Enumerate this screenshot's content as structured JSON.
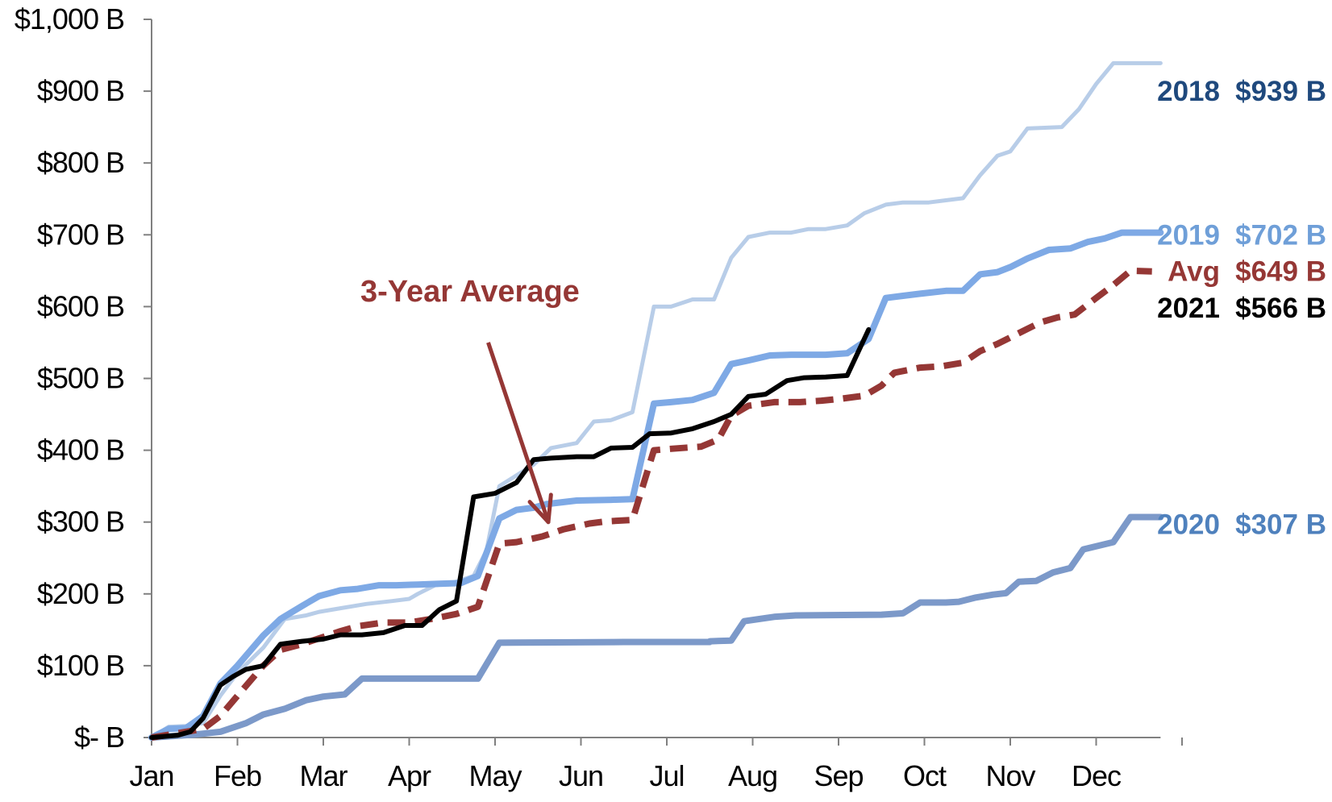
{
  "chart_data": {
    "type": "line",
    "x_categories": [
      "Jan",
      "Feb",
      "Mar",
      "Apr",
      "May",
      "Jun",
      "Jul",
      "Aug",
      "Sep",
      "Oct",
      "Nov",
      "Dec"
    ],
    "y_ticks": [
      {
        "value": 0,
        "label": "$- B"
      },
      {
        "value": 100,
        "label": "$100 B"
      },
      {
        "value": 200,
        "label": "$200 B"
      },
      {
        "value": 300,
        "label": "$300 B"
      },
      {
        "value": 400,
        "label": "$400 B"
      },
      {
        "value": 500,
        "label": "$500 B"
      },
      {
        "value": 600,
        "label": "$600 B"
      },
      {
        "value": 700,
        "label": "$700 B"
      },
      {
        "value": 800,
        "label": "$800 B"
      },
      {
        "value": 900,
        "label": "$900 B"
      },
      {
        "value": 1000,
        "label": "$1,000 B"
      }
    ],
    "ylim": [
      0,
      1000
    ],
    "xlim": [
      0,
      11.75
    ],
    "series": [
      {
        "name": "2020",
        "color": "#7c99c9",
        "width": 8,
        "dash": "",
        "points": [
          [
            0,
            0
          ],
          [
            0.5,
            4
          ],
          [
            0.8,
            8
          ],
          [
            1.1,
            20
          ],
          [
            1.3,
            32
          ],
          [
            1.55,
            40
          ],
          [
            1.8,
            52
          ],
          [
            2,
            57
          ],
          [
            2.25,
            60
          ],
          [
            2.45,
            82
          ],
          [
            3.8,
            82
          ],
          [
            4.05,
            132
          ],
          [
            5.5,
            133
          ],
          [
            6.5,
            133
          ],
          [
            6.5,
            134
          ],
          [
            6.75,
            135
          ],
          [
            6.9,
            162
          ],
          [
            7.25,
            168
          ],
          [
            7.5,
            170
          ],
          [
            8.5,
            171
          ],
          [
            8.75,
            173
          ],
          [
            8.95,
            188
          ],
          [
            9.25,
            188
          ],
          [
            9.4,
            189
          ],
          [
            9.6,
            195
          ],
          [
            9.8,
            199
          ],
          [
            9.95,
            201
          ],
          [
            10.1,
            217
          ],
          [
            10.3,
            218
          ],
          [
            10.5,
            230
          ],
          [
            10.7,
            236
          ],
          [
            10.85,
            262
          ],
          [
            11.2,
            272
          ],
          [
            11.4,
            307
          ],
          [
            11.75,
            307
          ]
        ]
      },
      {
        "name": "2018",
        "color": "#b8cde8",
        "width": 5,
        "dash": "",
        "points": [
          [
            0,
            0
          ],
          [
            0.2,
            15
          ],
          [
            0.4,
            16
          ],
          [
            0.6,
            20
          ],
          [
            0.8,
            58
          ],
          [
            1.0,
            90
          ],
          [
            1.3,
            125
          ],
          [
            1.55,
            165
          ],
          [
            1.8,
            170
          ],
          [
            1.95,
            175
          ],
          [
            2.2,
            180
          ],
          [
            2.5,
            186
          ],
          [
            2.8,
            190
          ],
          [
            3.0,
            193
          ],
          [
            3.1,
            200
          ],
          [
            3.3,
            212
          ],
          [
            3.5,
            215
          ],
          [
            3.75,
            225
          ],
          [
            3.9,
            260
          ],
          [
            4.05,
            350
          ],
          [
            4.25,
            365
          ],
          [
            4.45,
            380
          ],
          [
            4.65,
            403
          ],
          [
            4.95,
            410
          ],
          [
            5.15,
            440
          ],
          [
            5.35,
            442
          ],
          [
            5.6,
            453
          ],
          [
            5.85,
            600
          ],
          [
            6.05,
            600
          ],
          [
            6.3,
            610
          ],
          [
            6.55,
            610
          ],
          [
            6.75,
            668
          ],
          [
            6.95,
            697
          ],
          [
            7.2,
            703
          ],
          [
            7.45,
            703
          ],
          [
            7.65,
            708
          ],
          [
            7.85,
            708
          ],
          [
            8.1,
            713
          ],
          [
            8.3,
            730
          ],
          [
            8.55,
            742
          ],
          [
            8.75,
            745
          ],
          [
            9.05,
            745
          ],
          [
            9.25,
            748
          ],
          [
            9.45,
            751
          ],
          [
            9.65,
            783
          ],
          [
            9.85,
            810
          ],
          [
            10.0,
            816
          ],
          [
            10.2,
            848
          ],
          [
            10.4,
            849
          ],
          [
            10.6,
            850
          ],
          [
            10.8,
            875
          ],
          [
            11.0,
            910
          ],
          [
            11.2,
            939
          ],
          [
            11.75,
            939
          ]
        ]
      },
      {
        "name": "2019",
        "color": "#7ea9e5",
        "width": 8,
        "dash": "",
        "points": [
          [
            0,
            0
          ],
          [
            0.2,
            12
          ],
          [
            0.4,
            13
          ],
          [
            0.6,
            30
          ],
          [
            0.8,
            75
          ],
          [
            1.0,
            100
          ],
          [
            1.3,
            142
          ],
          [
            1.5,
            165
          ],
          [
            1.75,
            183
          ],
          [
            1.95,
            197
          ],
          [
            2.2,
            205
          ],
          [
            2.4,
            207
          ],
          [
            2.65,
            212
          ],
          [
            2.85,
            212
          ],
          [
            3.1,
            213
          ],
          [
            3.35,
            214
          ],
          [
            3.6,
            215
          ],
          [
            3.8,
            225
          ],
          [
            4.05,
            305
          ],
          [
            4.25,
            317
          ],
          [
            4.45,
            320
          ],
          [
            4.6,
            325
          ],
          [
            4.95,
            330
          ],
          [
            5.35,
            331
          ],
          [
            5.6,
            332
          ],
          [
            5.85,
            465
          ],
          [
            6.05,
            467
          ],
          [
            6.3,
            470
          ],
          [
            6.55,
            480
          ],
          [
            6.75,
            520
          ],
          [
            6.95,
            525
          ],
          [
            7.2,
            532
          ],
          [
            7.45,
            533
          ],
          [
            7.65,
            533
          ],
          [
            7.85,
            533
          ],
          [
            8.1,
            535
          ],
          [
            8.35,
            555
          ],
          [
            8.55,
            612
          ],
          [
            8.75,
            615
          ],
          [
            8.95,
            618
          ],
          [
            9.25,
            622
          ],
          [
            9.45,
            622
          ],
          [
            9.65,
            645
          ],
          [
            9.85,
            648
          ],
          [
            10.0,
            655
          ],
          [
            10.2,
            667
          ],
          [
            10.45,
            679
          ],
          [
            10.7,
            681
          ],
          [
            10.9,
            690
          ],
          [
            11.1,
            695
          ],
          [
            11.3,
            703
          ],
          [
            11.75,
            703
          ]
        ]
      },
      {
        "name": "Avg",
        "color": "#953735",
        "width": 8,
        "dash": "22 12",
        "points": [
          [
            0,
            0
          ],
          [
            0.3,
            6
          ],
          [
            0.6,
            12
          ],
          [
            0.8,
            30
          ],
          [
            1.05,
            65
          ],
          [
            1.3,
            100
          ],
          [
            1.5,
            122
          ],
          [
            1.75,
            130
          ],
          [
            1.95,
            138
          ],
          [
            2.2,
            148
          ],
          [
            2.4,
            155
          ],
          [
            2.7,
            160
          ],
          [
            3.0,
            160
          ],
          [
            3.3,
            166
          ],
          [
            3.55,
            172
          ],
          [
            3.8,
            182
          ],
          [
            4.05,
            270
          ],
          [
            4.25,
            272
          ],
          [
            4.55,
            280
          ],
          [
            4.8,
            290
          ],
          [
            5.1,
            298
          ],
          [
            5.3,
            301
          ],
          [
            5.6,
            303
          ],
          [
            5.85,
            400
          ],
          [
            6.05,
            402
          ],
          [
            6.4,
            405
          ],
          [
            6.6,
            415
          ],
          [
            6.75,
            448
          ],
          [
            6.95,
            462
          ],
          [
            7.25,
            467
          ],
          [
            7.55,
            467
          ],
          [
            7.8,
            469
          ],
          [
            8.05,
            472
          ],
          [
            8.3,
            476
          ],
          [
            8.5,
            490
          ],
          [
            8.65,
            508
          ],
          [
            8.95,
            515
          ],
          [
            9.2,
            517
          ],
          [
            9.45,
            522
          ],
          [
            9.65,
            538
          ],
          [
            9.85,
            548
          ],
          [
            10.05,
            560
          ],
          [
            10.35,
            578
          ],
          [
            10.55,
            585
          ],
          [
            10.75,
            589
          ],
          [
            11.0,
            612
          ],
          [
            11.2,
            630
          ],
          [
            11.4,
            650
          ],
          [
            11.65,
            649
          ]
        ]
      },
      {
        "name": "2021",
        "color": "#000000",
        "width": 6,
        "dash": "",
        "points": [
          [
            0,
            0
          ],
          [
            0.3,
            3
          ],
          [
            0.45,
            8
          ],
          [
            0.6,
            27
          ],
          [
            0.8,
            73
          ],
          [
            0.95,
            85
          ],
          [
            1.1,
            95
          ],
          [
            1.3,
            100
          ],
          [
            1.5,
            130
          ],
          [
            1.75,
            134
          ],
          [
            2.0,
            137
          ],
          [
            2.2,
            143
          ],
          [
            2.45,
            143
          ],
          [
            2.7,
            146
          ],
          [
            2.95,
            156
          ],
          [
            3.15,
            156
          ],
          [
            3.35,
            178
          ],
          [
            3.55,
            190
          ],
          [
            3.75,
            335
          ],
          [
            4.0,
            340
          ],
          [
            4.25,
            355
          ],
          [
            4.45,
            387
          ],
          [
            4.65,
            389
          ],
          [
            4.95,
            391
          ],
          [
            5.15,
            391
          ],
          [
            5.35,
            403
          ],
          [
            5.6,
            404
          ],
          [
            5.8,
            423
          ],
          [
            6.05,
            424
          ],
          [
            6.3,
            430
          ],
          [
            6.55,
            440
          ],
          [
            6.75,
            450
          ],
          [
            6.95,
            475
          ],
          [
            7.15,
            478
          ],
          [
            7.4,
            497
          ],
          [
            7.6,
            501
          ],
          [
            7.85,
            502
          ],
          [
            8.1,
            504
          ],
          [
            8.35,
            568
          ]
        ]
      }
    ],
    "end_labels": [
      {
        "series": "2018",
        "year": "2018",
        "value": "$939 B",
        "color": "#1f497d",
        "y": 900
      },
      {
        "series": "2019",
        "year": "2019",
        "value": "$702 B",
        "color": "#6f9fd8",
        "y": 700
      },
      {
        "series": "Avg",
        "year": "Avg",
        "value": "$649 B",
        "color": "#953735",
        "y": 649
      },
      {
        "series": "2021",
        "year": "2021",
        "value": "$566 B",
        "color": "#000000",
        "y": 598
      },
      {
        "series": "2020",
        "year": "2020",
        "value": "$307 B",
        "color": "#4f81bd",
        "y": 297
      }
    ],
    "annotation": {
      "text": "3-Year Average",
      "color": "#953735",
      "arrow_from": [
        3.92,
        550
      ],
      "arrow_to": [
        4.62,
        300
      ]
    }
  }
}
